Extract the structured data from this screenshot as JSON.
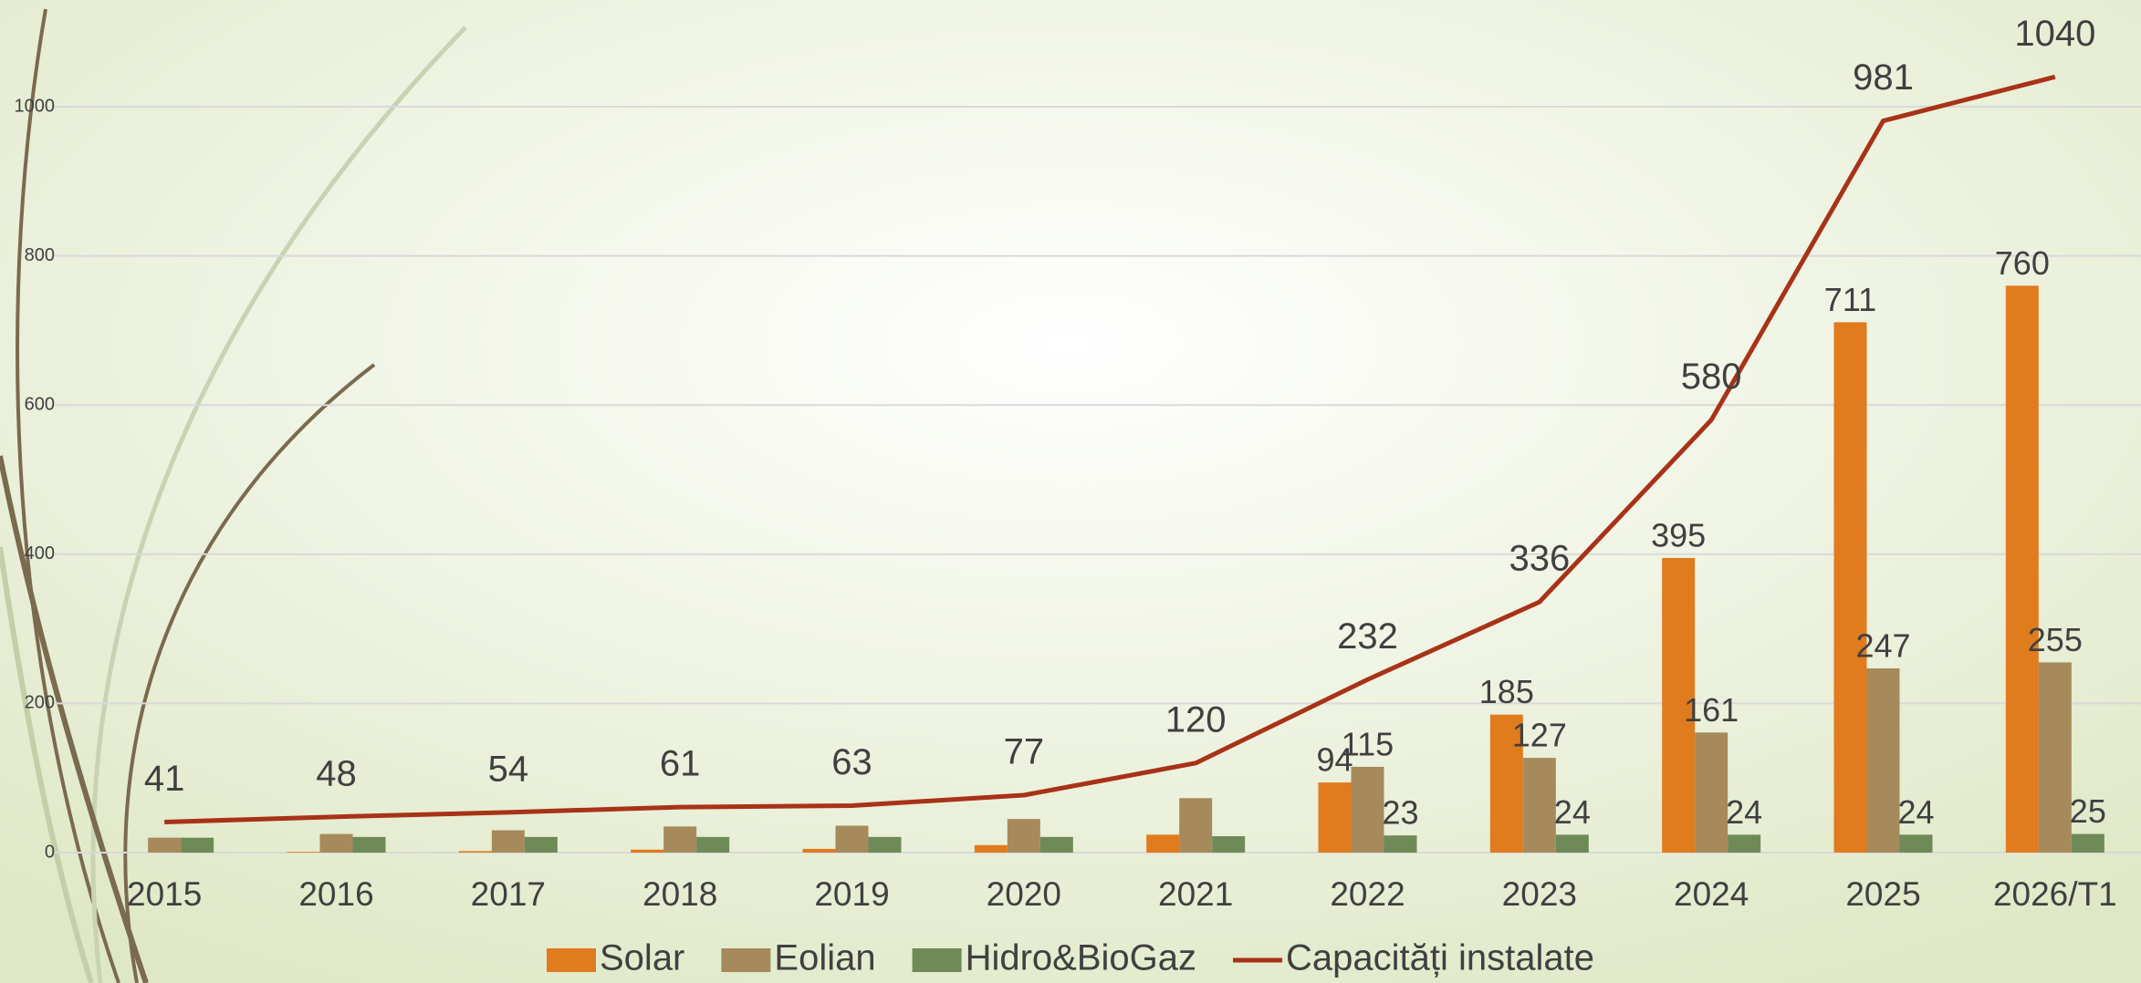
{
  "chart_data": {
    "type": "bar",
    "categories": [
      "2015",
      "2016",
      "2017",
      "2018",
      "2019",
      "2020",
      "2021",
      "2022",
      "2023",
      "2024",
      "2025",
      "2026/T1"
    ],
    "series": [
      {
        "name": "Solar",
        "type": "bar",
        "color": "#e07b1e",
        "values": [
          0,
          1,
          2,
          4,
          5,
          10,
          24,
          94,
          185,
          395,
          711,
          760
        ],
        "value_labels": [
          null,
          null,
          null,
          null,
          null,
          null,
          null,
          "94",
          "185",
          "395",
          "711",
          "760"
        ]
      },
      {
        "name": "Eolian",
        "type": "bar",
        "color": "#a68a5c",
        "values": [
          20,
          25,
          30,
          35,
          36,
          45,
          73,
          115,
          127,
          161,
          247,
          255
        ],
        "value_labels": [
          null,
          null,
          null,
          null,
          null,
          null,
          null,
          "115",
          "127",
          "161",
          "247",
          "255"
        ]
      },
      {
        "name": "Hidro&BioGaz",
        "type": "bar",
        "color": "#6e8b57",
        "values": [
          20,
          21,
          21,
          21,
          21,
          21,
          22,
          23,
          24,
          24,
          24,
          25
        ],
        "value_labels": [
          null,
          null,
          null,
          null,
          null,
          null,
          null,
          "23",
          "24",
          "24",
          "24",
          "25"
        ]
      },
      {
        "name": "Capacități instalate",
        "type": "line",
        "color": "#a83218",
        "values": [
          41,
          48,
          54,
          61,
          63,
          77,
          120,
          232,
          336,
          580,
          981,
          1040
        ],
        "value_labels": [
          "41",
          "48",
          "54",
          "61",
          "63",
          "77",
          "120",
          "232",
          "336",
          "580",
          "981",
          "1040"
        ]
      }
    ],
    "ylim": [
      0,
      1000
    ],
    "yticks": [
      0,
      200,
      400,
      600,
      800,
      1000
    ],
    "grid": true,
    "legend": "bottom"
  }
}
